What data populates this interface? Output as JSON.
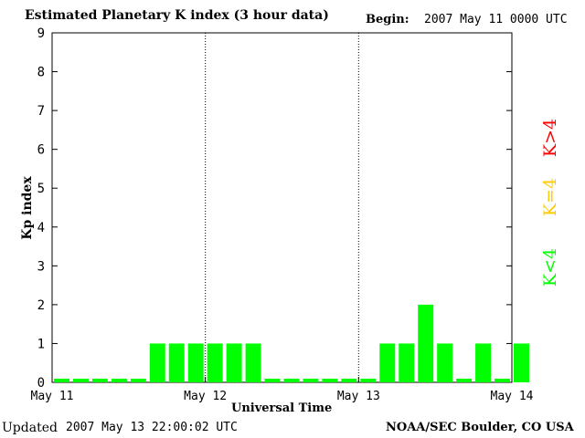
{
  "header": {
    "title": "Estimated Planetary K index (3 hour data)",
    "begin_label": "Begin:",
    "begin_value": "2007 May 11 0000 UTC"
  },
  "footer": {
    "updated_label": "Updated",
    "updated_value": "2007 May 13 22:00:02 UTC",
    "source": "NOAA/SEC Boulder, CO USA"
  },
  "legend": {
    "high": {
      "label": "K>4",
      "color": "#ff0000"
    },
    "equal": {
      "label": "K=4",
      "color": "#ffcc00"
    },
    "low": {
      "label": "K<4",
      "color": "#00ff00"
    }
  },
  "chart_data": {
    "type": "bar",
    "xlabel": "Universal Time",
    "ylabel": "Kp index",
    "ylim": [
      0,
      9
    ],
    "yticks": [
      "0",
      "1",
      "2",
      "3",
      "4",
      "5",
      "6",
      "7",
      "8",
      "9"
    ],
    "xticks": [
      "May 11",
      "May 12",
      "May 13",
      "May 14"
    ],
    "bar_color": "#00ff00",
    "values": [
      0,
      0,
      0,
      0,
      0,
      1,
      1,
      1,
      1,
      1,
      1,
      0,
      0,
      0,
      0,
      0,
      0,
      1,
      1,
      2,
      1,
      0,
      1,
      0,
      1
    ],
    "day_separators_dotted": true
  }
}
